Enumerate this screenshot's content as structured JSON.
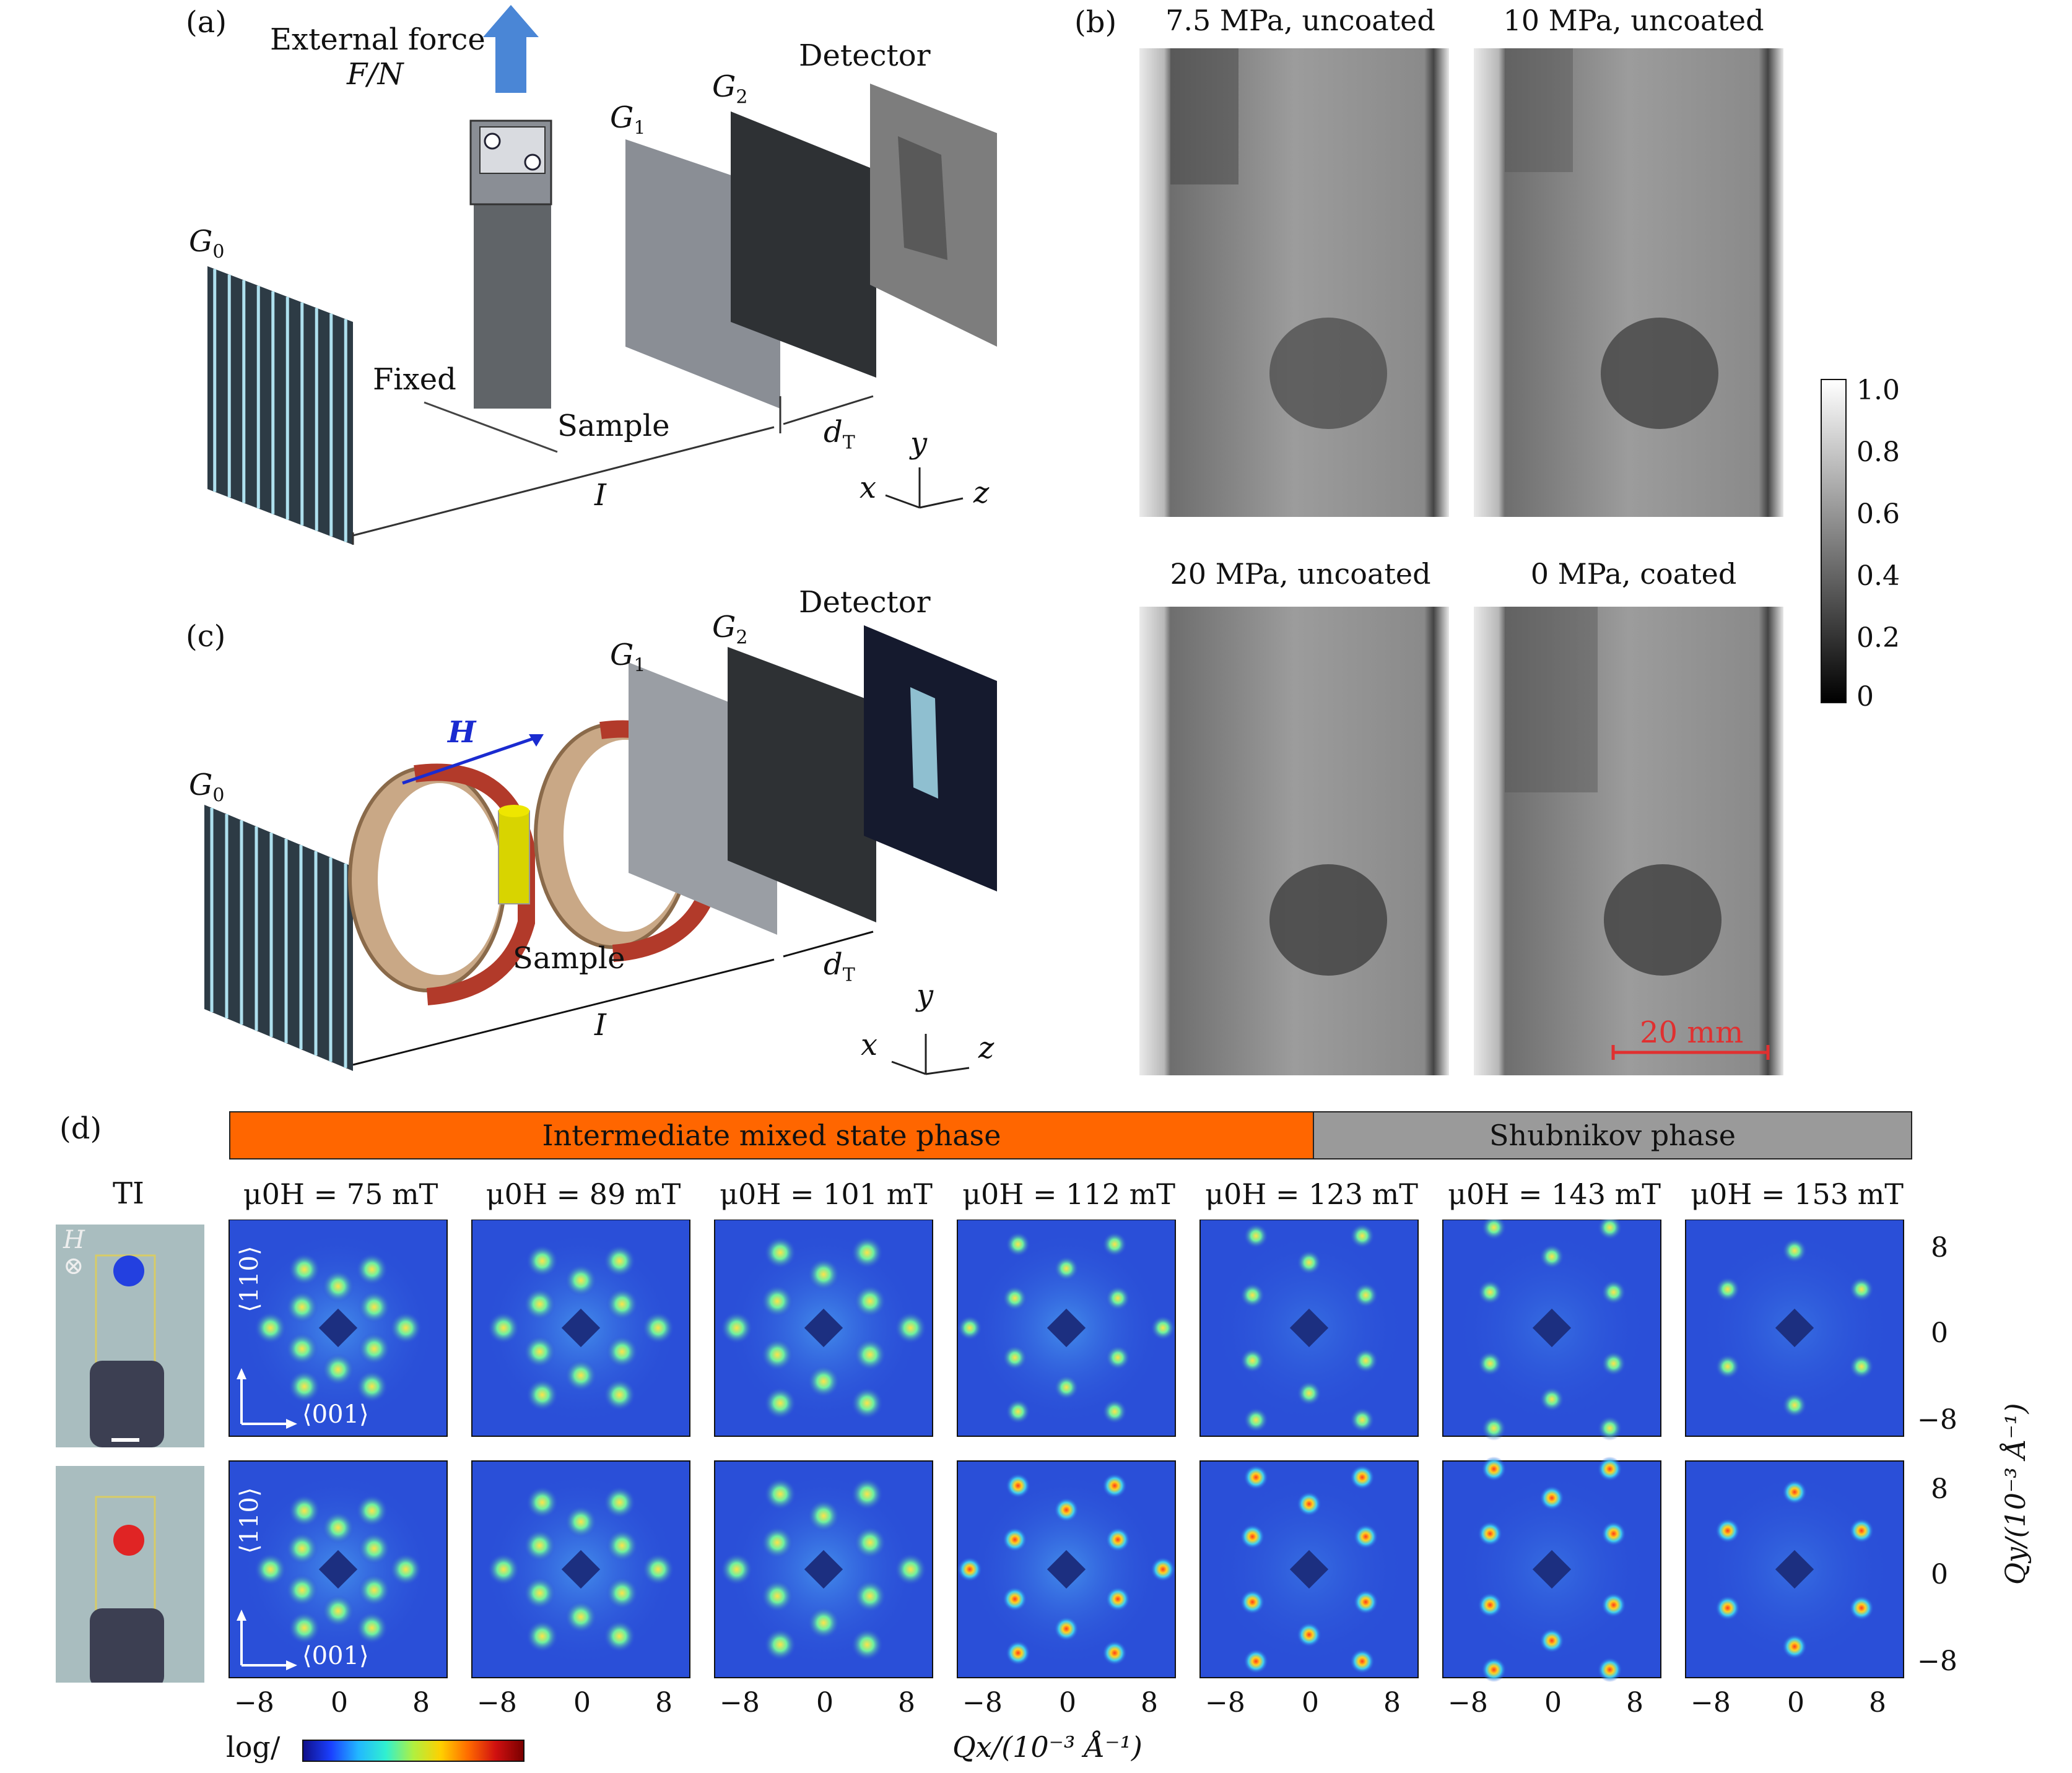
{
  "panel_a": {
    "label": "(a)",
    "external_force": "External force",
    "force_unit": "F/N",
    "g0": "G",
    "g0_sub": "0",
    "g1": "G",
    "g1_sub": "1",
    "g2": "G",
    "g2_sub": "2",
    "detector": "Detector",
    "fixed": "Fixed",
    "sample": "Sample",
    "distance_I": "I",
    "distance_dT": "d",
    "dT_sub": "T",
    "axis_x": "x",
    "axis_y": "y",
    "axis_z": "z"
  },
  "panel_b": {
    "label": "(b)",
    "images": [
      {
        "caption": "7.5 MPa, uncoated"
      },
      {
        "caption": "10 MPa, uncoated"
      },
      {
        "caption": "20 MPa, uncoated"
      },
      {
        "caption": "0 MPa, coated"
      }
    ],
    "scale_bar": "20 mm",
    "colorbar_ticks": [
      "1.0",
      "0.8",
      "0.6",
      "0.4",
      "0.2",
      "0"
    ]
  },
  "panel_c": {
    "label": "(c)",
    "field": "H",
    "g0": "G",
    "g0_sub": "0",
    "g1": "G",
    "g1_sub": "1",
    "g2": "G",
    "g2_sub": "2",
    "detector": "Detector",
    "sample": "Sample",
    "distance_I": "I",
    "distance_dT": "d",
    "dT_sub": "T",
    "axis_x": "x",
    "axis_y": "y",
    "axis_z": "z"
  },
  "panel_d": {
    "label": "(d)",
    "phase_intermediate": "Intermediate mixed state phase",
    "phase_shubnikov": "Shubnikov phase",
    "ti_label": "TI",
    "h_symbol": "H",
    "dir_110": "⟨110⟩",
    "dir_001": "⟨001⟩",
    "fields": [
      "μ0H = 75 mT",
      "μ0H = 89 mT",
      "μ0H = 101 mT",
      "μ0H = 112 mT",
      "μ0H = 123 mT",
      "μ0H = 143 mT",
      "μ0H = 153 mT"
    ],
    "x_ticks": [
      "−8",
      "0",
      "8"
    ],
    "y_ticks": [
      "8",
      "0",
      "−8"
    ],
    "x_axis_label": "Qx/(10⁻³ Å⁻¹)",
    "y_axis_label": "Qy/(10⁻³ Å⁻¹)",
    "colorbar_label": "log/",
    "colors": {
      "intermediate": "#ff6600",
      "shubnikov": "#9a9a9a",
      "map_bg": "#2a4fd8"
    }
  }
}
